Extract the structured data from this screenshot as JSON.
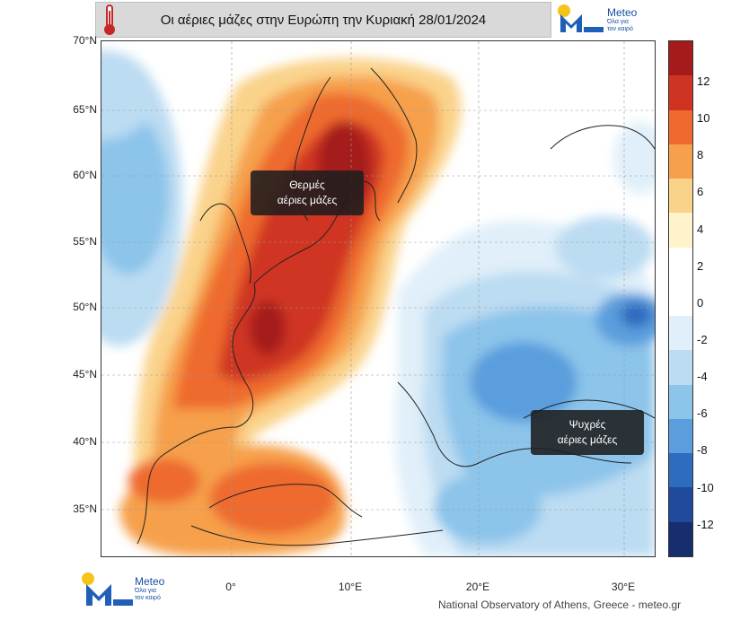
{
  "title": "Οι αέριες μάζες στην Ευρώπη την Κυριακή 28/01/2024",
  "logo": {
    "name": "Meteo",
    "tagline_line1": "Όλα για",
    "tagline_line2": "τον καιρό"
  },
  "latitude_labels": [
    "70°N",
    "65°N",
    "60°N",
    "55°N",
    "50°N",
    "45°N",
    "40°N",
    "35°N"
  ],
  "longitude_labels": [
    "0°",
    "10°E",
    "20°E",
    "30°E"
  ],
  "annotations": {
    "warm": {
      "line1": "Θερμές",
      "line2": "αέριες μάζες"
    },
    "cold": {
      "line1": "Ψυχρές",
      "line2": "αέριες μάζες"
    }
  },
  "colorbar": {
    "labels": [
      "12",
      "10",
      "8",
      "6",
      "4",
      "2",
      "0",
      "-2",
      "-4",
      "-6",
      "-8",
      "-10",
      "-12"
    ],
    "colors": [
      "#a51a1a",
      "#cf3422",
      "#ee6a2f",
      "#f6a04c",
      "#fad38b",
      "#fff3cc",
      "#ffffff",
      "#ffffff",
      "#e0eff9",
      "#bcdcf2",
      "#8cc4ea",
      "#5a9ede",
      "#2e6cc0",
      "#1f4a9c",
      "#162d6e"
    ]
  },
  "credit": "National Observatory of Athens, Greece - meteo.gr"
}
